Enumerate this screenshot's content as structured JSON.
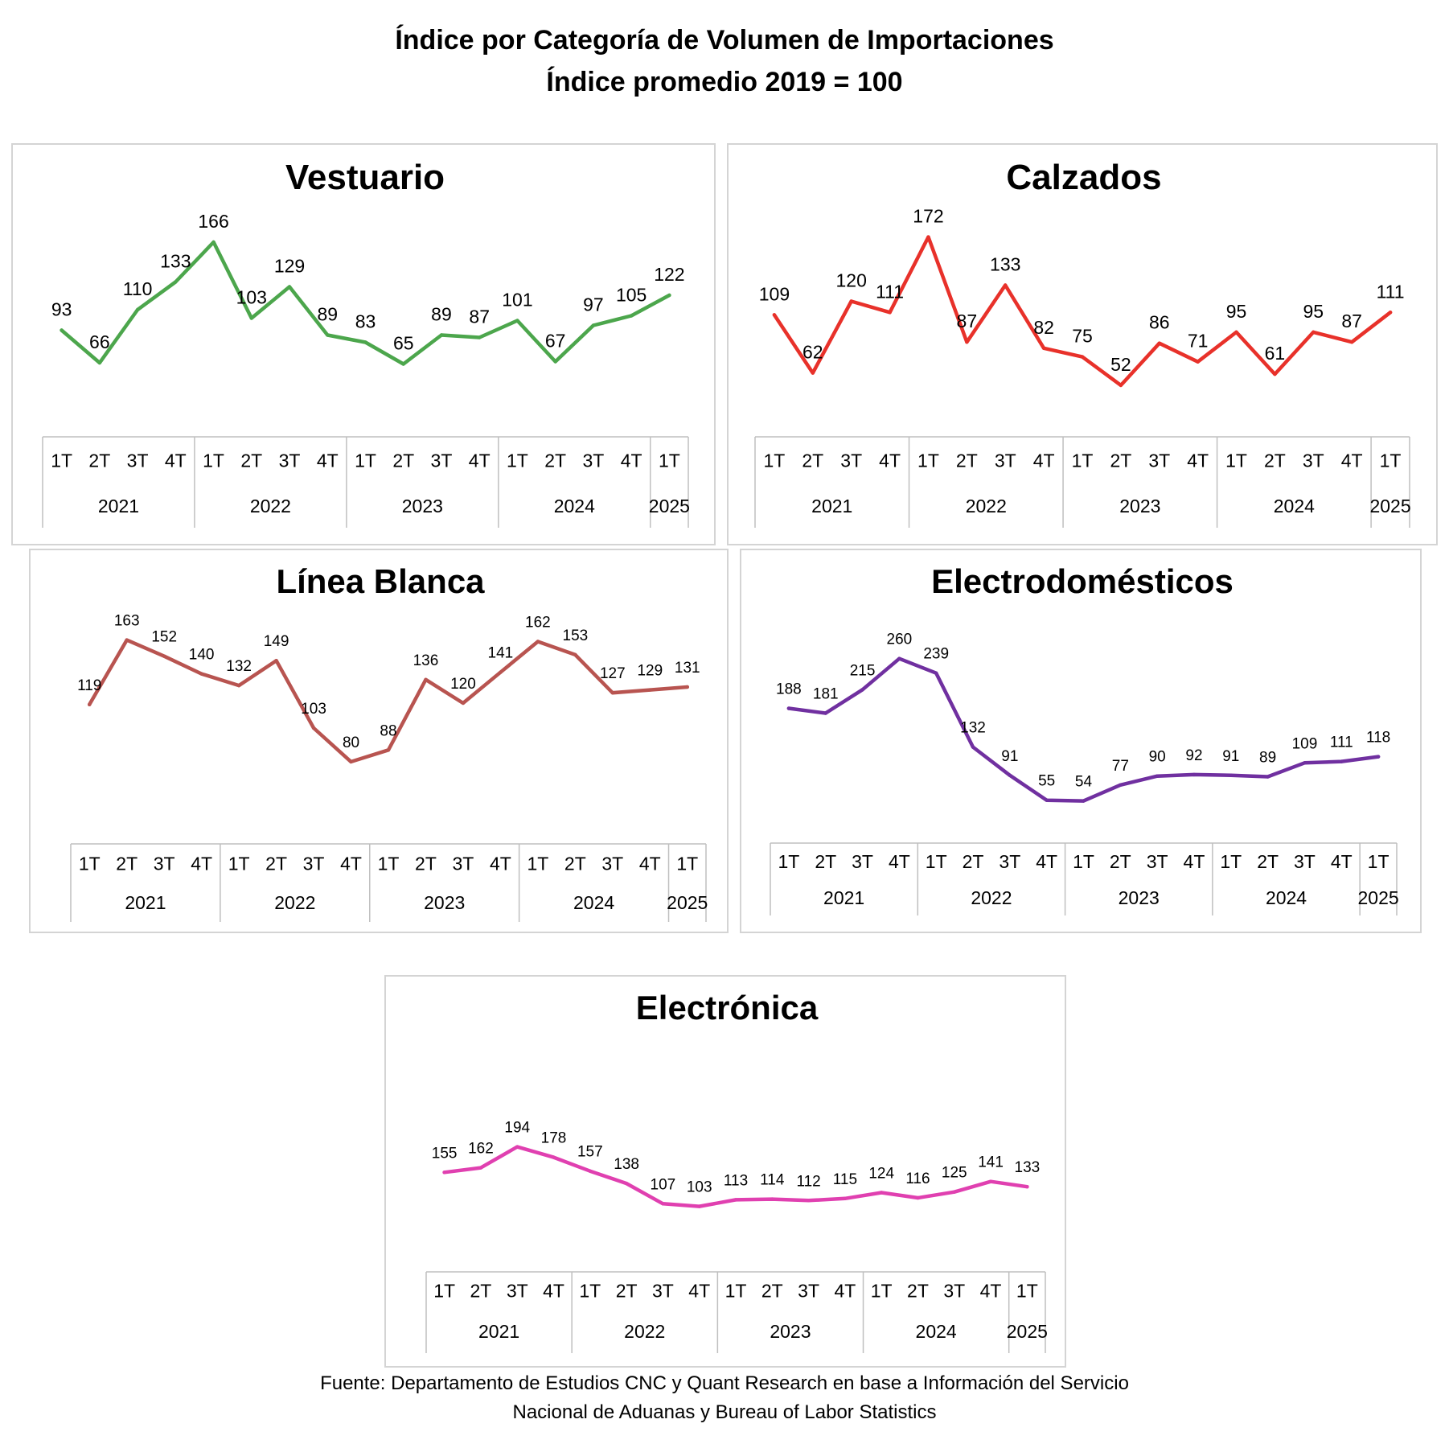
{
  "title": {
    "line1": "Índice por Categoría de Volumen de Importaciones",
    "line2": "Índice promedio 2019 = 100"
  },
  "source": {
    "line1": "Fuente: Departamento de Estudios CNC y Quant Research en base a Información del Servicio",
    "line2": "Nacional de Aduanas y Bureau of Labor Statistics"
  },
  "chart_data": [
    {
      "type": "line",
      "title": "Vestuario",
      "color": "#4CA64C",
      "quarters": [
        "1T",
        "2T",
        "3T",
        "4T",
        "1T",
        "2T",
        "3T",
        "4T",
        "1T",
        "2T",
        "3T",
        "4T",
        "1T",
        "2T",
        "3T",
        "4T",
        "1T"
      ],
      "years": [
        "2021",
        "2022",
        "2023",
        "2024",
        "2025"
      ],
      "values": [
        93,
        66,
        110,
        133,
        166,
        103,
        129,
        89,
        83,
        65,
        89,
        87,
        101,
        67,
        97,
        105,
        122
      ]
    },
    {
      "type": "line",
      "title": "Calzados",
      "color": "#E8312A",
      "quarters": [
        "1T",
        "2T",
        "3T",
        "4T",
        "1T",
        "2T",
        "3T",
        "4T",
        "1T",
        "2T",
        "3T",
        "4T",
        "1T",
        "2T",
        "3T",
        "4T",
        "1T"
      ],
      "years": [
        "2021",
        "2022",
        "2023",
        "2024",
        "2025"
      ],
      "values": [
        109,
        62,
        120,
        111,
        172,
        87,
        133,
        82,
        75,
        52,
        86,
        71,
        95,
        61,
        95,
        87,
        111
      ]
    },
    {
      "type": "line",
      "title": "Línea Blanca",
      "color": "#B85450",
      "quarters": [
        "1T",
        "2T",
        "3T",
        "4T",
        "1T",
        "2T",
        "3T",
        "4T",
        "1T",
        "2T",
        "3T",
        "4T",
        "1T",
        "2T",
        "3T",
        "4T",
        "1T"
      ],
      "years": [
        "2021",
        "2022",
        "2023",
        "2024",
        "2025"
      ],
      "values": [
        119,
        163,
        152,
        140,
        132,
        149,
        103,
        80,
        88,
        136,
        120,
        141,
        162,
        153,
        127,
        129,
        131
      ]
    },
    {
      "type": "line",
      "title": "Electrodomésticos",
      "color": "#7030A0",
      "quarters": [
        "1T",
        "2T",
        "3T",
        "4T",
        "1T",
        "2T",
        "3T",
        "4T",
        "1T",
        "2T",
        "3T",
        "4T",
        "1T",
        "2T",
        "3T",
        "4T",
        "1T"
      ],
      "years": [
        "2021",
        "2022",
        "2023",
        "2024",
        "2025"
      ],
      "values": [
        188,
        181,
        215,
        260,
        239,
        132,
        91,
        55,
        54,
        77,
        90,
        92,
        91,
        89,
        109,
        111,
        118
      ]
    },
    {
      "type": "line",
      "title": "Electrónica",
      "color": "#E040B0",
      "quarters": [
        "1T",
        "2T",
        "3T",
        "4T",
        "1T",
        "2T",
        "3T",
        "4T",
        "1T",
        "2T",
        "3T",
        "4T",
        "1T",
        "2T",
        "3T",
        "4T",
        "1T"
      ],
      "years": [
        "2021",
        "2022",
        "2023",
        "2024",
        "2025"
      ],
      "values": [
        155,
        162,
        194,
        178,
        157,
        138,
        107,
        103,
        113,
        114,
        112,
        115,
        124,
        116,
        125,
        141,
        133
      ]
    }
  ]
}
